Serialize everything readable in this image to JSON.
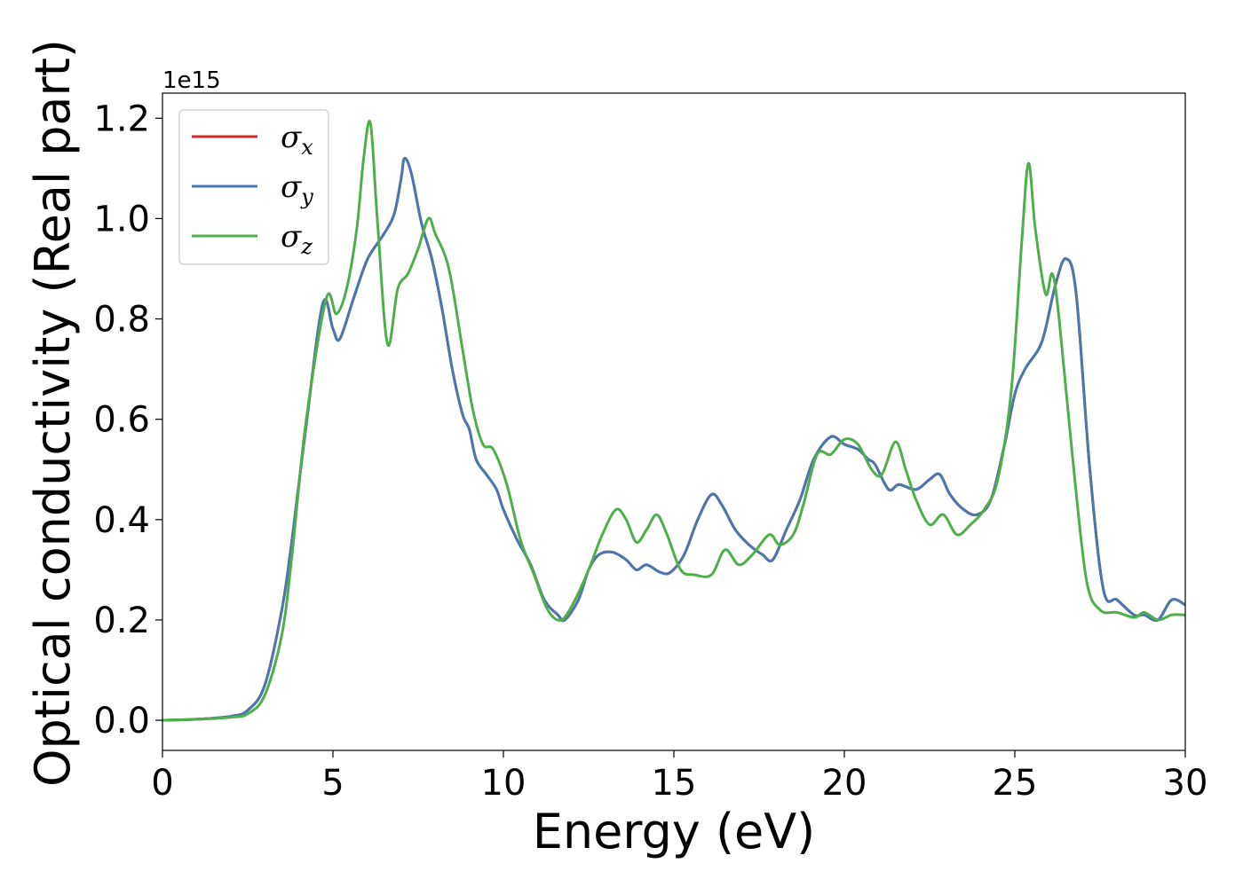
{
  "chart_data": {
    "type": "line",
    "xlabel": "Energy (eV)",
    "ylabel": "Optical conductivity (Real part)",
    "y_offset_label": "1e15",
    "xlim": [
      0,
      30
    ],
    "ylim": [
      -0.06,
      1.25
    ],
    "xticks": [
      0,
      5,
      10,
      15,
      20,
      25,
      30
    ],
    "xtick_labels": [
      "0",
      "5",
      "10",
      "15",
      "20",
      "25",
      "30"
    ],
    "yticks": [
      0.0,
      0.2,
      0.4,
      0.6,
      0.8,
      1.0,
      1.2
    ],
    "ytick_labels": [
      "0.0",
      "0.2",
      "0.4",
      "0.6",
      "0.8",
      "1.0",
      "1.2"
    ],
    "grid": false,
    "legend_position": "top-left",
    "series": [
      {
        "name": "σx",
        "symbol": "σ",
        "sub": "x",
        "color": "#d62728",
        "x": [
          0,
          1,
          2,
          2.5,
          3,
          3.5,
          3.8,
          4.2,
          4.7,
          5.0,
          5.2,
          5.6,
          5.9,
          6.1,
          6.5,
          6.8,
          7.0,
          7.1,
          7.3,
          7.6,
          7.9,
          8.2,
          8.5,
          8.8,
          9.0,
          9.2,
          9.5,
          9.8,
          10.0,
          10.4,
          10.8,
          11.2,
          11.6,
          11.8,
          12.2,
          12.5,
          12.8,
          13.2,
          13.6,
          13.9,
          14.2,
          14.6,
          14.9,
          15.3,
          15.7,
          16.1,
          16.4,
          16.8,
          17.2,
          17.6,
          17.9,
          18.3,
          18.7,
          19.1,
          19.6,
          20.0,
          20.4,
          20.7,
          20.9,
          21.3,
          21.6,
          22.1,
          22.5,
          22.8,
          23.1,
          23.5,
          23.9,
          24.3,
          24.7,
          25.0,
          25.3,
          25.7,
          25.9,
          26.2,
          26.5,
          26.8,
          27.2,
          27.6,
          28.0,
          28.5,
          28.8,
          29.2,
          29.6,
          30.0
        ],
        "values": [
          0.0,
          0.002,
          0.008,
          0.02,
          0.07,
          0.22,
          0.36,
          0.58,
          0.83,
          0.78,
          0.76,
          0.84,
          0.9,
          0.93,
          0.97,
          1.01,
          1.08,
          1.12,
          1.09,
          0.99,
          0.92,
          0.82,
          0.7,
          0.61,
          0.58,
          0.52,
          0.49,
          0.46,
          0.42,
          0.36,
          0.31,
          0.24,
          0.21,
          0.2,
          0.24,
          0.3,
          0.33,
          0.335,
          0.32,
          0.3,
          0.31,
          0.295,
          0.295,
          0.33,
          0.4,
          0.45,
          0.43,
          0.38,
          0.35,
          0.33,
          0.32,
          0.38,
          0.44,
          0.52,
          0.565,
          0.55,
          0.54,
          0.52,
          0.51,
          0.46,
          0.47,
          0.46,
          0.48,
          0.49,
          0.45,
          0.42,
          0.41,
          0.44,
          0.55,
          0.65,
          0.7,
          0.74,
          0.78,
          0.87,
          0.92,
          0.85,
          0.5,
          0.26,
          0.24,
          0.21,
          0.21,
          0.2,
          0.24,
          0.23
        ]
      },
      {
        "name": "σy",
        "symbol": "σ",
        "sub": "y",
        "color": "#4878b0",
        "x": [
          0,
          1,
          2,
          2.5,
          3,
          3.5,
          3.8,
          4.2,
          4.7,
          5.0,
          5.2,
          5.6,
          5.9,
          6.1,
          6.5,
          6.8,
          7.0,
          7.1,
          7.3,
          7.6,
          7.9,
          8.2,
          8.5,
          8.8,
          9.0,
          9.2,
          9.5,
          9.8,
          10.0,
          10.4,
          10.8,
          11.2,
          11.6,
          11.8,
          12.2,
          12.5,
          12.8,
          13.2,
          13.6,
          13.9,
          14.2,
          14.6,
          14.9,
          15.3,
          15.7,
          16.1,
          16.4,
          16.8,
          17.2,
          17.6,
          17.9,
          18.3,
          18.7,
          19.1,
          19.6,
          20.0,
          20.4,
          20.7,
          20.9,
          21.3,
          21.6,
          22.1,
          22.5,
          22.8,
          23.1,
          23.5,
          23.9,
          24.3,
          24.7,
          25.0,
          25.3,
          25.7,
          25.9,
          26.2,
          26.5,
          26.8,
          27.2,
          27.6,
          28.0,
          28.5,
          28.8,
          29.2,
          29.6,
          30.0
        ],
        "values": [
          0.0,
          0.002,
          0.008,
          0.02,
          0.07,
          0.22,
          0.36,
          0.58,
          0.83,
          0.78,
          0.76,
          0.84,
          0.9,
          0.93,
          0.97,
          1.01,
          1.08,
          1.12,
          1.09,
          0.99,
          0.92,
          0.82,
          0.7,
          0.61,
          0.58,
          0.52,
          0.49,
          0.46,
          0.42,
          0.36,
          0.31,
          0.24,
          0.21,
          0.2,
          0.24,
          0.3,
          0.33,
          0.335,
          0.32,
          0.3,
          0.31,
          0.295,
          0.295,
          0.33,
          0.4,
          0.45,
          0.43,
          0.38,
          0.35,
          0.33,
          0.32,
          0.38,
          0.44,
          0.52,
          0.565,
          0.55,
          0.54,
          0.52,
          0.51,
          0.46,
          0.47,
          0.46,
          0.48,
          0.49,
          0.45,
          0.42,
          0.41,
          0.44,
          0.55,
          0.65,
          0.7,
          0.74,
          0.78,
          0.87,
          0.92,
          0.85,
          0.5,
          0.26,
          0.24,
          0.21,
          0.21,
          0.2,
          0.24,
          0.23
        ]
      },
      {
        "name": "σz",
        "symbol": "σ",
        "sub": "z",
        "color": "#4daf4a",
        "x": [
          0,
          1,
          2,
          2.5,
          3,
          3.5,
          3.8,
          4.2,
          4.8,
          5.1,
          5.4,
          5.7,
          5.9,
          6.1,
          6.3,
          6.6,
          6.9,
          7.2,
          7.5,
          7.8,
          8.0,
          8.4,
          8.8,
          9.1,
          9.4,
          9.7,
          10.1,
          10.5,
          10.9,
          11.3,
          11.7,
          12.1,
          12.5,
          12.9,
          13.3,
          13.6,
          13.9,
          14.2,
          14.5,
          14.8,
          15.2,
          15.6,
          16.1,
          16.5,
          16.9,
          17.3,
          17.8,
          18.1,
          18.5,
          18.8,
          19.2,
          19.6,
          20.0,
          20.4,
          20.8,
          21.1,
          21.5,
          21.8,
          22.1,
          22.5,
          22.9,
          23.3,
          23.7,
          24.1,
          24.5,
          24.9,
          25.2,
          25.4,
          25.6,
          25.9,
          26.1,
          26.3,
          26.7,
          27.1,
          27.5,
          28.0,
          28.5,
          28.8,
          29.2,
          29.6,
          30.0
        ],
        "values": [
          0.0,
          0.002,
          0.006,
          0.013,
          0.05,
          0.17,
          0.33,
          0.59,
          0.84,
          0.81,
          0.86,
          0.98,
          1.12,
          1.19,
          1.0,
          0.75,
          0.86,
          0.89,
          0.94,
          1.0,
          0.97,
          0.9,
          0.74,
          0.62,
          0.55,
          0.54,
          0.47,
          0.36,
          0.29,
          0.22,
          0.2,
          0.24,
          0.3,
          0.37,
          0.42,
          0.4,
          0.355,
          0.38,
          0.41,
          0.37,
          0.3,
          0.29,
          0.29,
          0.34,
          0.31,
          0.33,
          0.37,
          0.35,
          0.37,
          0.43,
          0.53,
          0.53,
          0.56,
          0.55,
          0.5,
          0.49,
          0.555,
          0.5,
          0.44,
          0.39,
          0.41,
          0.37,
          0.39,
          0.42,
          0.48,
          0.66,
          0.95,
          1.11,
          0.98,
          0.85,
          0.89,
          0.8,
          0.52,
          0.28,
          0.22,
          0.215,
          0.205,
          0.215,
          0.2,
          0.21,
          0.21
        ]
      }
    ]
  }
}
